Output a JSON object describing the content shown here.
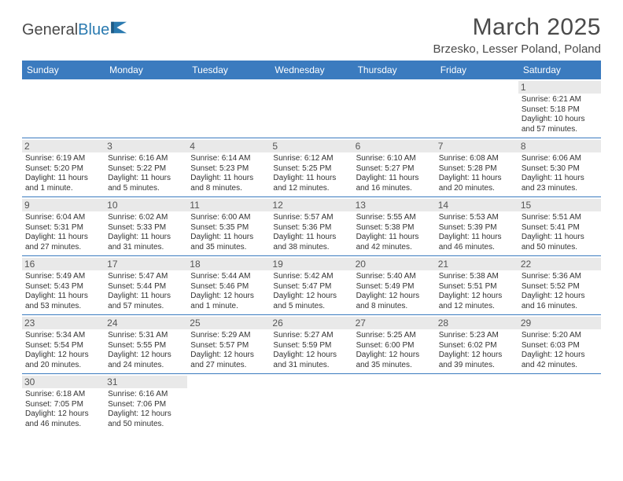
{
  "brand": {
    "name_gray": "General",
    "name_blue": "Blue"
  },
  "title": "March 2025",
  "location": "Brzesko, Lesser Poland, Poland",
  "colors": {
    "header_bg": "#3b7bbf",
    "header_text": "#ffffff",
    "daynum_bg": "#e9e9e9",
    "row_border": "#3b7bbf",
    "text": "#333333"
  },
  "day_headers": [
    "Sunday",
    "Monday",
    "Tuesday",
    "Wednesday",
    "Thursday",
    "Friday",
    "Saturday"
  ],
  "weeks": [
    [
      null,
      null,
      null,
      null,
      null,
      null,
      {
        "n": "1",
        "sr": "6:21 AM",
        "ss": "5:18 PM",
        "dl": "10 hours and 57 minutes."
      }
    ],
    [
      {
        "n": "2",
        "sr": "6:19 AM",
        "ss": "5:20 PM",
        "dl": "11 hours and 1 minute."
      },
      {
        "n": "3",
        "sr": "6:16 AM",
        "ss": "5:22 PM",
        "dl": "11 hours and 5 minutes."
      },
      {
        "n": "4",
        "sr": "6:14 AM",
        "ss": "5:23 PM",
        "dl": "11 hours and 8 minutes."
      },
      {
        "n": "5",
        "sr": "6:12 AM",
        "ss": "5:25 PM",
        "dl": "11 hours and 12 minutes."
      },
      {
        "n": "6",
        "sr": "6:10 AM",
        "ss": "5:27 PM",
        "dl": "11 hours and 16 minutes."
      },
      {
        "n": "7",
        "sr": "6:08 AM",
        "ss": "5:28 PM",
        "dl": "11 hours and 20 minutes."
      },
      {
        "n": "8",
        "sr": "6:06 AM",
        "ss": "5:30 PM",
        "dl": "11 hours and 23 minutes."
      }
    ],
    [
      {
        "n": "9",
        "sr": "6:04 AM",
        "ss": "5:31 PM",
        "dl": "11 hours and 27 minutes."
      },
      {
        "n": "10",
        "sr": "6:02 AM",
        "ss": "5:33 PM",
        "dl": "11 hours and 31 minutes."
      },
      {
        "n": "11",
        "sr": "6:00 AM",
        "ss": "5:35 PM",
        "dl": "11 hours and 35 minutes."
      },
      {
        "n": "12",
        "sr": "5:57 AM",
        "ss": "5:36 PM",
        "dl": "11 hours and 38 minutes."
      },
      {
        "n": "13",
        "sr": "5:55 AM",
        "ss": "5:38 PM",
        "dl": "11 hours and 42 minutes."
      },
      {
        "n": "14",
        "sr": "5:53 AM",
        "ss": "5:39 PM",
        "dl": "11 hours and 46 minutes."
      },
      {
        "n": "15",
        "sr": "5:51 AM",
        "ss": "5:41 PM",
        "dl": "11 hours and 50 minutes."
      }
    ],
    [
      {
        "n": "16",
        "sr": "5:49 AM",
        "ss": "5:43 PM",
        "dl": "11 hours and 53 minutes."
      },
      {
        "n": "17",
        "sr": "5:47 AM",
        "ss": "5:44 PM",
        "dl": "11 hours and 57 minutes."
      },
      {
        "n": "18",
        "sr": "5:44 AM",
        "ss": "5:46 PM",
        "dl": "12 hours and 1 minute."
      },
      {
        "n": "19",
        "sr": "5:42 AM",
        "ss": "5:47 PM",
        "dl": "12 hours and 5 minutes."
      },
      {
        "n": "20",
        "sr": "5:40 AM",
        "ss": "5:49 PM",
        "dl": "12 hours and 8 minutes."
      },
      {
        "n": "21",
        "sr": "5:38 AM",
        "ss": "5:51 PM",
        "dl": "12 hours and 12 minutes."
      },
      {
        "n": "22",
        "sr": "5:36 AM",
        "ss": "5:52 PM",
        "dl": "12 hours and 16 minutes."
      }
    ],
    [
      {
        "n": "23",
        "sr": "5:34 AM",
        "ss": "5:54 PM",
        "dl": "12 hours and 20 minutes."
      },
      {
        "n": "24",
        "sr": "5:31 AM",
        "ss": "5:55 PM",
        "dl": "12 hours and 24 minutes."
      },
      {
        "n": "25",
        "sr": "5:29 AM",
        "ss": "5:57 PM",
        "dl": "12 hours and 27 minutes."
      },
      {
        "n": "26",
        "sr": "5:27 AM",
        "ss": "5:59 PM",
        "dl": "12 hours and 31 minutes."
      },
      {
        "n": "27",
        "sr": "5:25 AM",
        "ss": "6:00 PM",
        "dl": "12 hours and 35 minutes."
      },
      {
        "n": "28",
        "sr": "5:23 AM",
        "ss": "6:02 PM",
        "dl": "12 hours and 39 minutes."
      },
      {
        "n": "29",
        "sr": "5:20 AM",
        "ss": "6:03 PM",
        "dl": "12 hours and 42 minutes."
      }
    ],
    [
      {
        "n": "30",
        "sr": "6:18 AM",
        "ss": "7:05 PM",
        "dl": "12 hours and 46 minutes."
      },
      {
        "n": "31",
        "sr": "6:16 AM",
        "ss": "7:06 PM",
        "dl": "12 hours and 50 minutes."
      },
      null,
      null,
      null,
      null,
      null
    ]
  ],
  "labels": {
    "sunrise": "Sunrise:",
    "sunset": "Sunset:",
    "daylight": "Daylight:"
  }
}
